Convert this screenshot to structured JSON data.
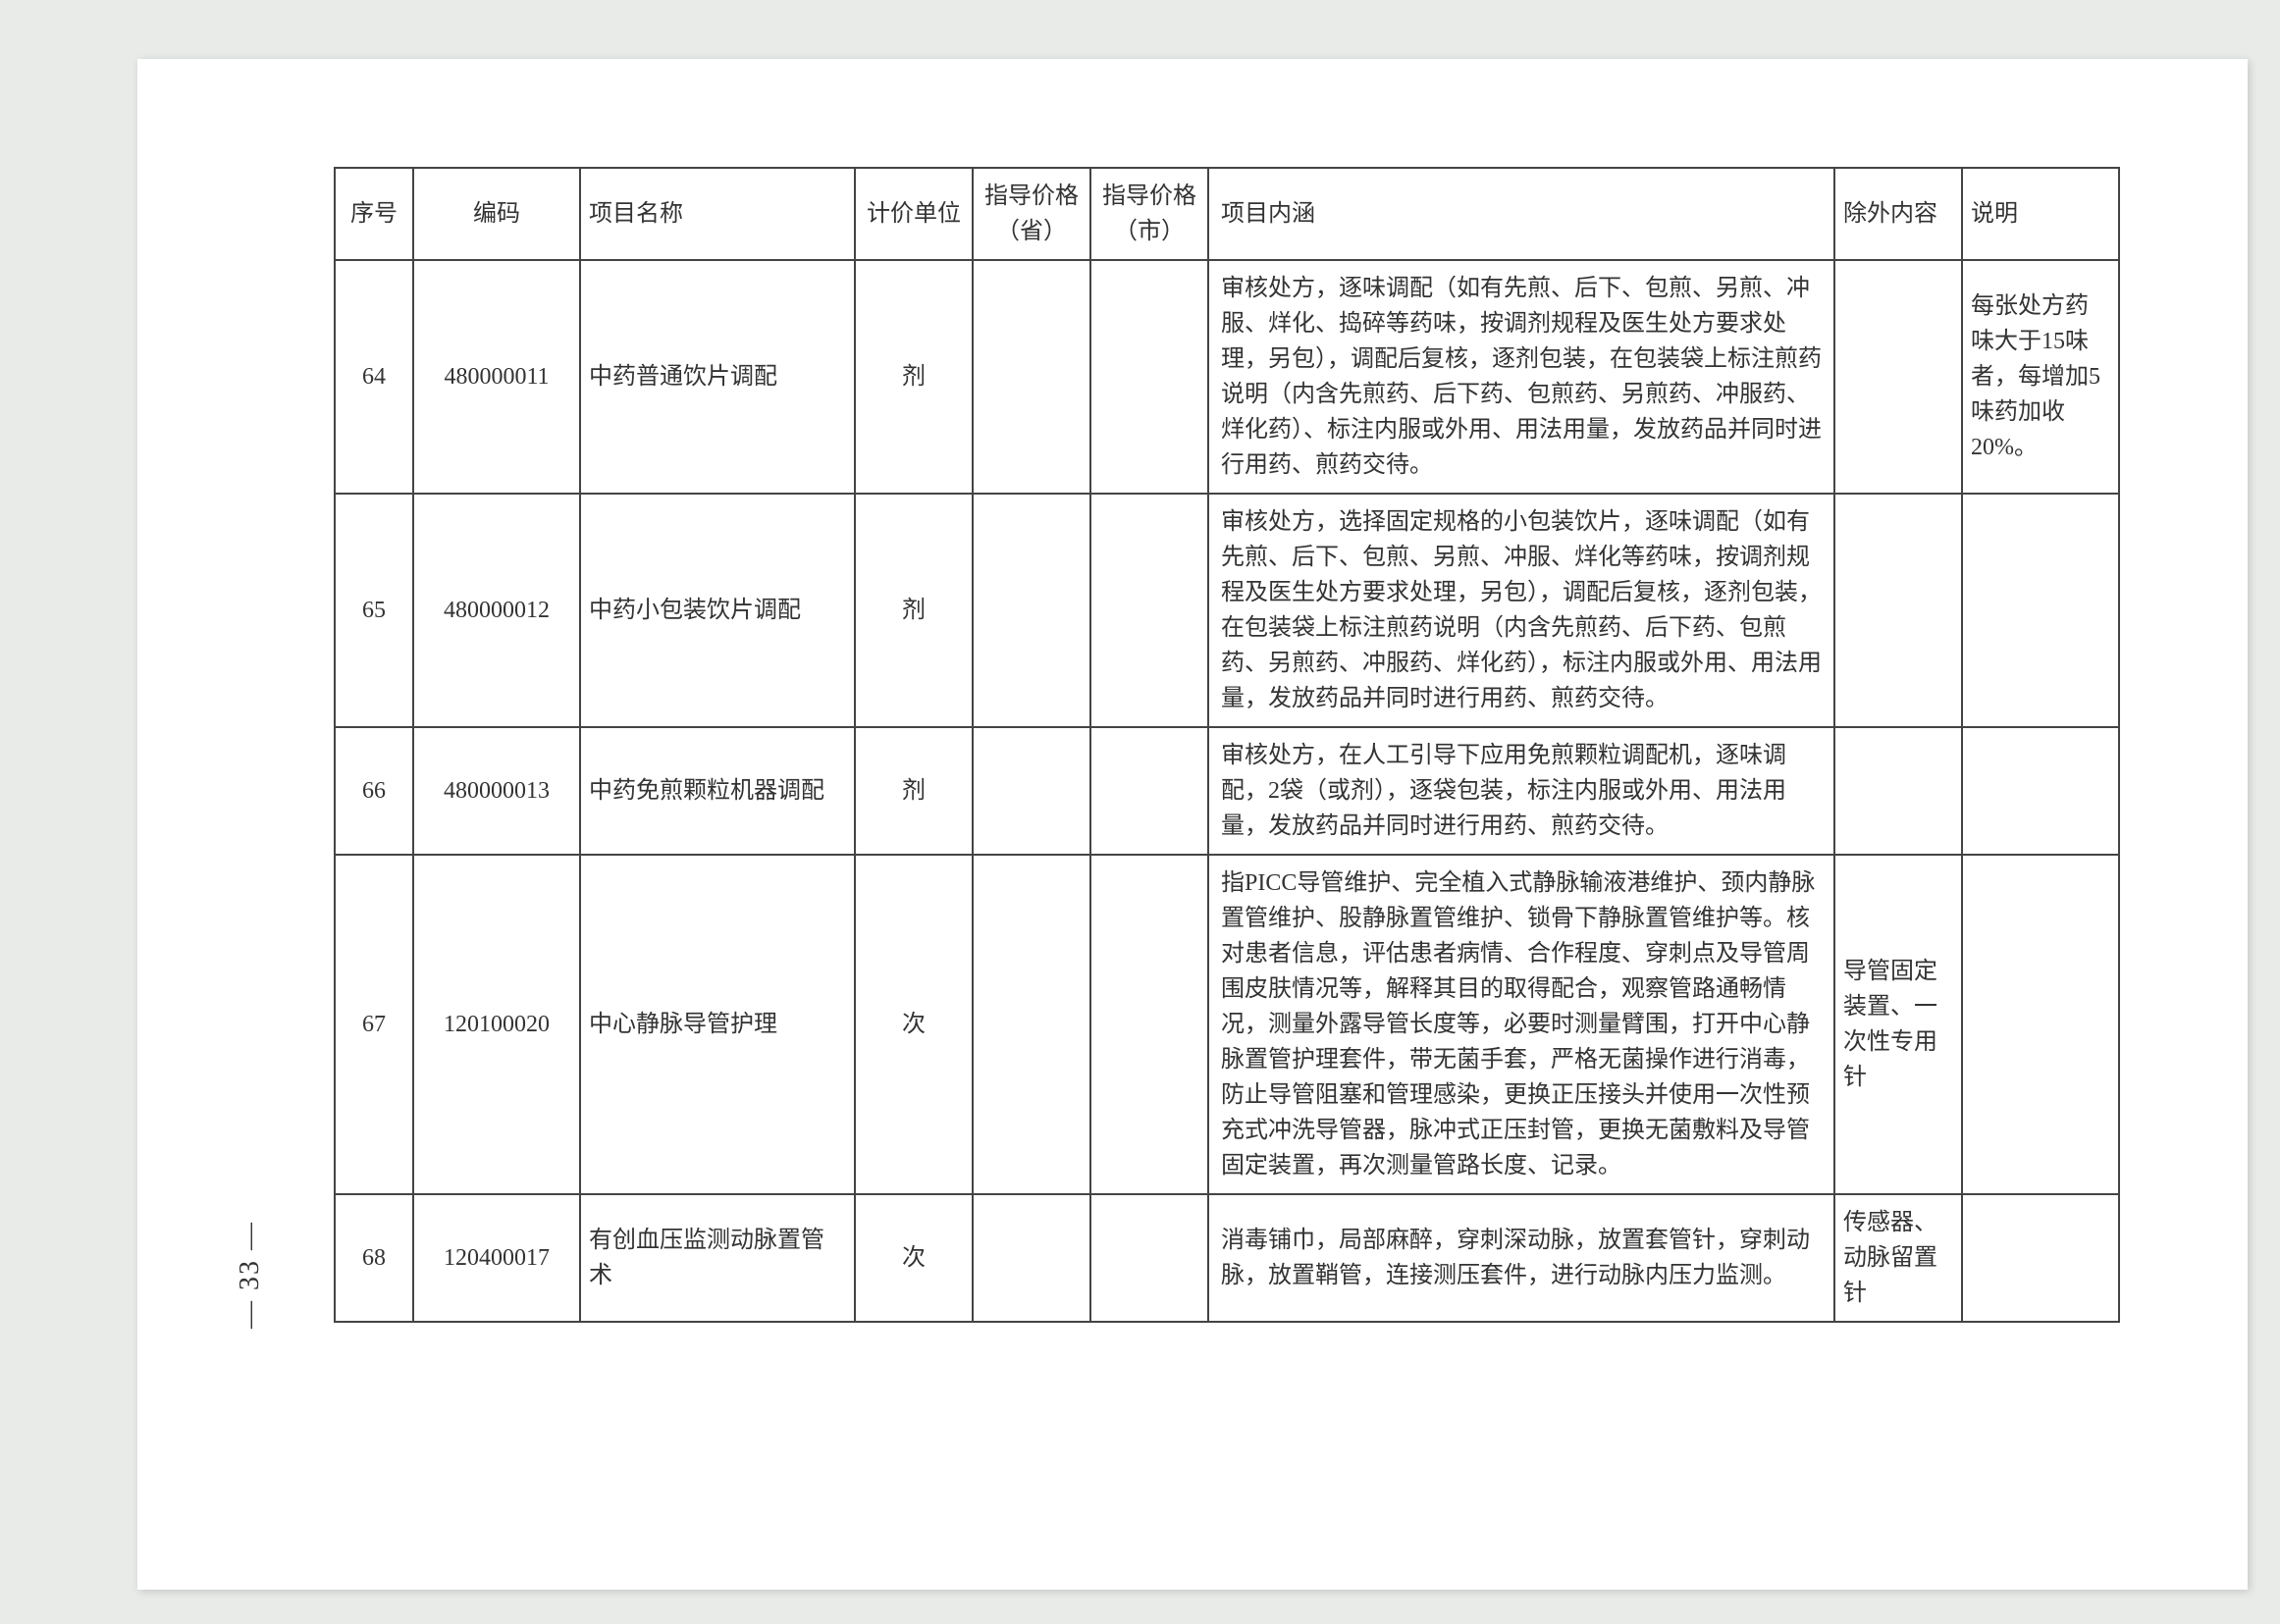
{
  "page_number": "— 33 —",
  "headers": {
    "seq": "序号",
    "code": "编码",
    "name": "项目名称",
    "unit": "计价单位",
    "price_prov": "指导价格（省）",
    "price_city": "指导价格（市）",
    "content": "项目内涵",
    "exclude": "除外内容",
    "note": "说明"
  },
  "rows": [
    {
      "seq": "64",
      "code": "480000011",
      "name": "中药普通饮片调配",
      "unit": "剂",
      "price_prov": "",
      "price_city": "",
      "content": "审核处方，逐味调配（如有先煎、后下、包煎、另煎、冲服、烊化、捣碎等药味，按调剂规程及医生处方要求处理，另包），调配后复核，逐剂包装，在包装袋上标注煎药说明（内含先煎药、后下药、包煎药、另煎药、冲服药、烊化药）、标注内服或外用、用法用量，发放药品并同时进行用药、煎药交待。",
      "exclude": "",
      "note": "每张处方药味大于15味者，每增加5味药加收20%。"
    },
    {
      "seq": "65",
      "code": "480000012",
      "name": "中药小包装饮片调配",
      "unit": "剂",
      "price_prov": "",
      "price_city": "",
      "content": "审核处方，选择固定规格的小包装饮片，逐味调配（如有先煎、后下、包煎、另煎、冲服、烊化等药味，按调剂规程及医生处方要求处理，另包），调配后复核，逐剂包装，在包装袋上标注煎药说明（内含先煎药、后下药、包煎药、另煎药、冲服药、烊化药），标注内服或外用、用法用量，发放药品并同时进行用药、煎药交待。",
      "exclude": "",
      "note": ""
    },
    {
      "seq": "66",
      "code": "480000013",
      "name": "中药免煎颗粒机器调配",
      "unit": "剂",
      "price_prov": "",
      "price_city": "",
      "content": "审核处方，在人工引导下应用免煎颗粒调配机，逐味调配，2袋（或剂），逐袋包装，标注内服或外用、用法用量，发放药品并同时进行用药、煎药交待。",
      "exclude": "",
      "note": ""
    },
    {
      "seq": "67",
      "code": "120100020",
      "name": "中心静脉导管护理",
      "unit": "次",
      "price_prov": "",
      "price_city": "",
      "content": "指PICC导管维护、完全植入式静脉输液港维护、颈内静脉置管维护、股静脉置管维护、锁骨下静脉置管维护等。核对患者信息，评估患者病情、合作程度、穿刺点及导管周围皮肤情况等，解释其目的取得配合，观察管路通畅情况，测量外露导管长度等，必要时测量臂围，打开中心静脉置管护理套件，带无菌手套，严格无菌操作进行消毒，防止导管阻塞和管理感染，更换正压接头并使用一次性预充式冲洗导管器，脉冲式正压封管，更换无菌敷料及导管固定装置，再次测量管路长度、记录。",
      "exclude": "导管固定装置、一次性专用针",
      "note": ""
    },
    {
      "seq": "68",
      "code": "120400017",
      "name": "有创血压监测动脉置管术",
      "unit": "次",
      "price_prov": "",
      "price_city": "",
      "content": "消毒铺巾，局部麻醉，穿刺深动脉，放置套管针，穿刺动脉，放置鞘管，连接测压套件，进行动脉内压力监测。",
      "exclude": "传感器、动脉留置针",
      "note": ""
    }
  ]
}
